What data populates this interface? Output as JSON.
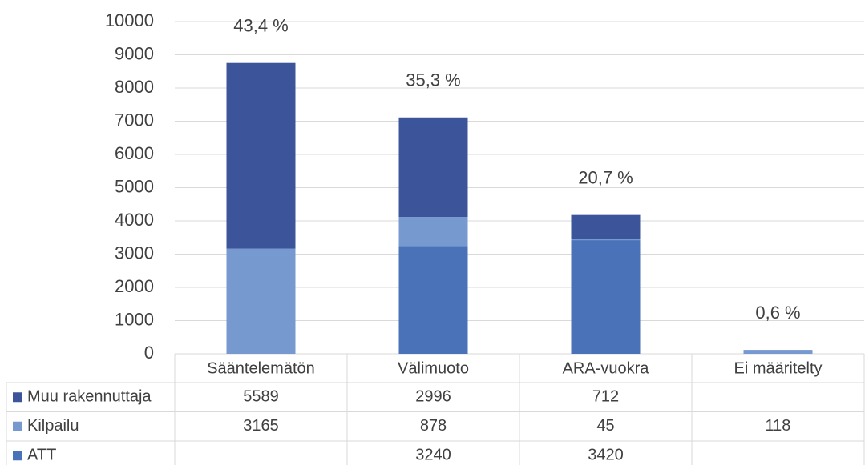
{
  "chart_data": {
    "type": "stacked_bar",
    "categories": [
      "Sääntelemätön",
      "Välimuoto",
      "ARA-vuokra",
      "Ei määritelty"
    ],
    "series": [
      {
        "name": "Muu rakennuttaja",
        "color": "#3c5499",
        "values": [
          5589,
          2996,
          712,
          null
        ]
      },
      {
        "name": "Kilpailu",
        "color": "#7699d0",
        "values": [
          3165,
          878,
          45,
          118
        ]
      },
      {
        "name": "ATT",
        "color": "#4a72b8",
        "values": [
          null,
          3240,
          3420,
          null
        ]
      }
    ],
    "annotations": [
      "43,4 %",
      "35,3 %",
      "20,7 %",
      "0,6 %"
    ],
    "ylim": [
      0,
      10000
    ],
    "yticks": [
      0,
      1000,
      2000,
      3000,
      4000,
      5000,
      6000,
      7000,
      8000,
      9000,
      10000
    ],
    "grid": true,
    "data_table": true
  }
}
